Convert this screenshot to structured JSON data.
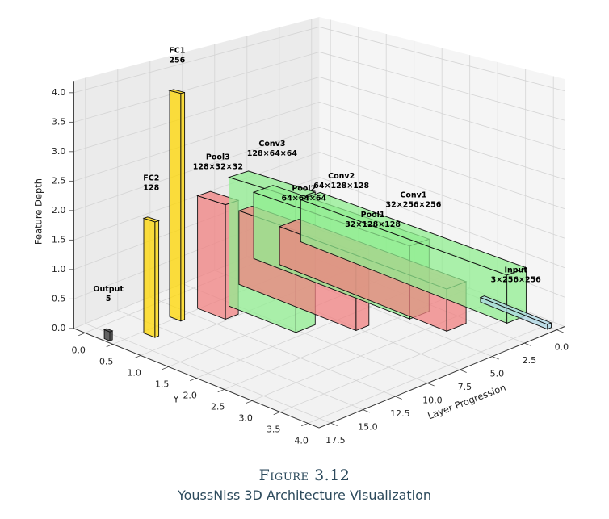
{
  "chart_data": {
    "type": "bar3d",
    "xlabel": "Layer Progression",
    "ylabel": "Y",
    "zlabel": "Feature Depth",
    "xlim": [
      -0.6,
      18.4
    ],
    "ylim": [
      -0.2,
      4.2
    ],
    "zlim": [
      0,
      4.2
    ],
    "xticks": [
      {
        "value": 0,
        "label": "0.0"
      },
      {
        "value": 2.5,
        "label": "2.5"
      },
      {
        "value": 5,
        "label": "5.0"
      },
      {
        "value": 7.5,
        "label": "7.5"
      },
      {
        "value": 10,
        "label": "10.0"
      },
      {
        "value": 12.5,
        "label": "12.5"
      },
      {
        "value": 15,
        "label": "15.0"
      },
      {
        "value": 17.5,
        "label": "17.5"
      }
    ],
    "yticks": [
      {
        "value": 0,
        "label": "0.0"
      },
      {
        "value": 0.5,
        "label": "0.5"
      },
      {
        "value": 1,
        "label": "1.0"
      },
      {
        "value": 1.5,
        "label": "1.5"
      },
      {
        "value": 2,
        "label": "2.0"
      },
      {
        "value": 2.5,
        "label": "2.5"
      },
      {
        "value": 3,
        "label": "3.0"
      },
      {
        "value": 3.5,
        "label": "3.5"
      },
      {
        "value": 4,
        "label": "4.0"
      }
    ],
    "zticks": [
      {
        "value": 0,
        "label": "0.0"
      },
      {
        "value": 0.5,
        "label": "0.5"
      },
      {
        "value": 1,
        "label": "1.0"
      },
      {
        "value": 1.5,
        "label": "1.5"
      },
      {
        "value": 2,
        "label": "2.0"
      },
      {
        "value": 2.5,
        "label": "2.5"
      },
      {
        "value": 3,
        "label": "3.0"
      },
      {
        "value": 3.5,
        "label": "3.5"
      },
      {
        "value": 4,
        "label": "4.0"
      }
    ],
    "grid": true,
    "layers": [
      {
        "name": "Input",
        "shape": "3×256×256",
        "color": "#add8e6",
        "x": [
          0,
          0.3
        ],
        "y": [
          2.9,
          4.1
        ],
        "z": [
          0,
          0.08
        ]
      },
      {
        "name": "Conv1",
        "shape": "32×256×256",
        "color": "#90ee90",
        "x": [
          1.5,
          3.0
        ],
        "y": [
          0.3,
          4.0
        ],
        "z": [
          0.3,
          1.1
        ]
      },
      {
        "name": "Pool1",
        "shape": "32×128×128",
        "color": "#f08080",
        "x": [
          4.0,
          5.5
        ],
        "y": [
          0.5,
          3.5
        ],
        "z": [
          0.2,
          0.9
        ]
      },
      {
        "name": "Conv2",
        "shape": "64×128×128",
        "color": "#90ee90",
        "x": [
          6.0,
          7.5
        ],
        "y": [
          0.5,
          3.3
        ],
        "z": [
          0.5,
          1.7
        ]
      },
      {
        "name": "Pool2",
        "shape": "64×64×64",
        "color": "#f08080",
        "x": [
          8.5,
          9.5
        ],
        "y": [
          0.7,
          2.8
        ],
        "z": [
          0.3,
          1.6
        ]
      },
      {
        "name": "Conv3",
        "shape": "128×64×64",
        "color": "#90ee90",
        "x": [
          10.5,
          12.0
        ],
        "y": [
          1.1,
          2.3
        ],
        "z": [
          0.3,
          2.5
        ]
      },
      {
        "name": "Pool3",
        "shape": "128×32×32",
        "color": "#f08080",
        "x": [
          13.0,
          14.0
        ],
        "y": [
          1.0,
          1.5
        ],
        "z": [
          0.4,
          2.3
        ]
      },
      {
        "name": "FC1",
        "shape": "256",
        "color": "#ffd700",
        "x": [
          15.0,
          15.3
        ],
        "y": [
          0.8,
          1.0
        ],
        "z": [
          0.3,
          4.1
        ]
      },
      {
        "name": "FC2",
        "shape": "128",
        "color": "#ffd700",
        "x": [
          17.0,
          17.3
        ],
        "y": [
          0.8,
          1.0
        ],
        "z": [
          0.2,
          2.1
        ]
      },
      {
        "name": "Output",
        "shape": "5",
        "color": "#333333",
        "x": [
          18.0,
          18.2
        ],
        "y": [
          0.3,
          0.4
        ],
        "z": [
          0,
          0.15
        ]
      }
    ]
  },
  "figure": {
    "label": "Figure 3.12",
    "caption": "YoussNiss 3D Architecture Visualization"
  }
}
